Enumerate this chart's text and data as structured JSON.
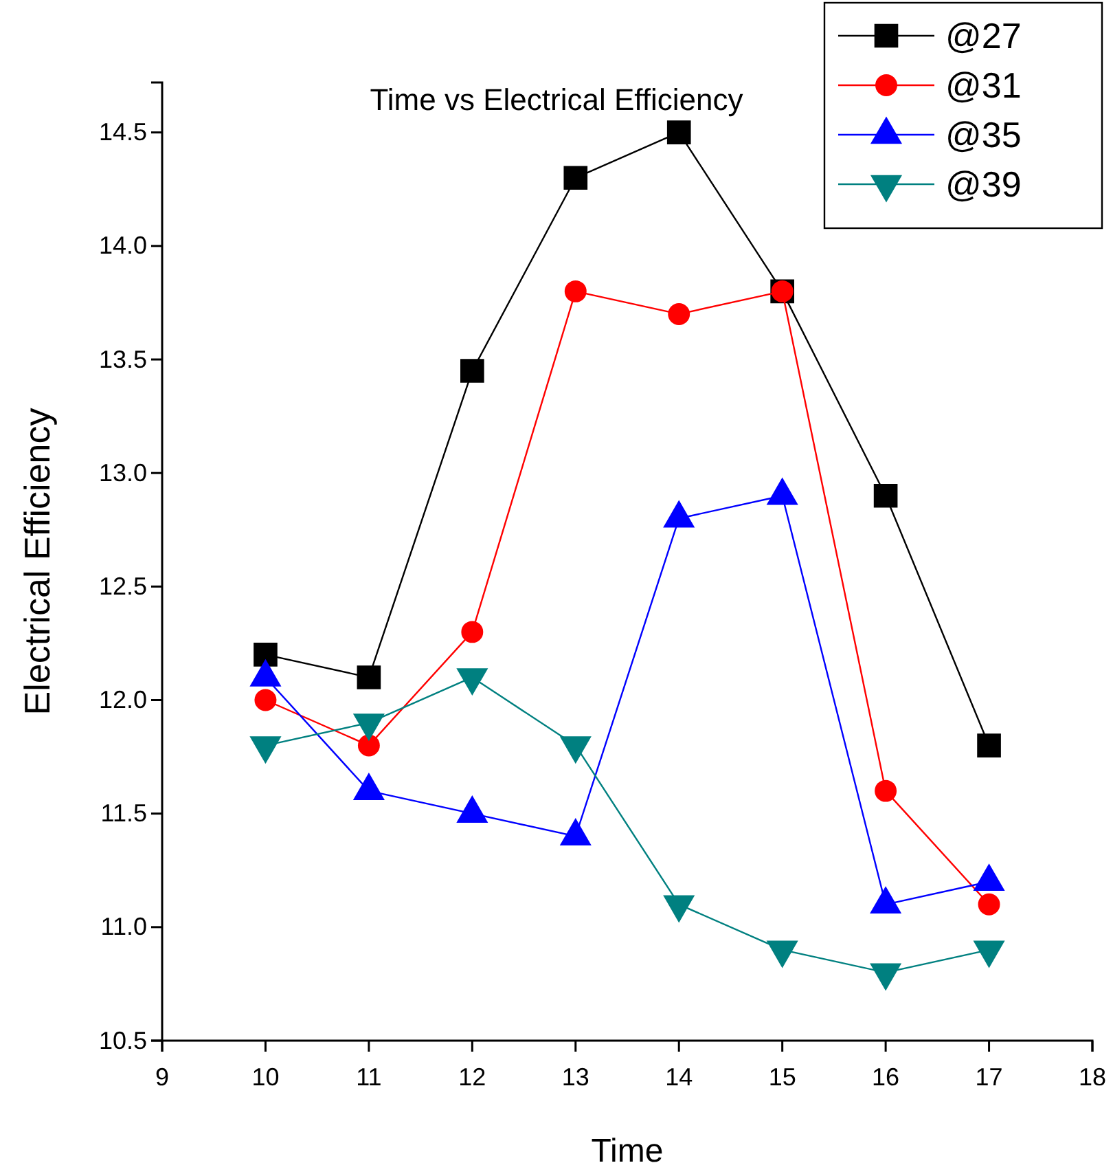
{
  "chart_data": {
    "type": "line",
    "title": "Time vs Electrical Efficiency",
    "xlabel": "Time",
    "ylabel": "Electrical Efficiency",
    "x": [
      10,
      11,
      12,
      13,
      14,
      15,
      16,
      17
    ],
    "xlim": [
      9,
      18
    ],
    "xticks": [
      9,
      10,
      11,
      12,
      13,
      14,
      15,
      16,
      17,
      18
    ],
    "ylim": [
      10.5,
      14.72
    ],
    "yticks": [
      10.5,
      {
        "value": 11,
        "label": "11.0"
      },
      11.5,
      {
        "value": 12,
        "label": "12.0"
      },
      12.5,
      {
        "value": 13,
        "label": "13.0"
      },
      13.5,
      {
        "value": 14,
        "label": "14.0"
      },
      14.5
    ],
    "legend": "top right",
    "line_style": "solid",
    "series": [
      {
        "name": "@27",
        "color": "#000000",
        "marker": "square",
        "values": [
          12.2,
          12.1,
          13.45,
          14.3,
          14.5,
          13.8,
          12.9,
          11.8
        ]
      },
      {
        "name": "@31",
        "color": "#ff0000",
        "marker": "circle",
        "values": [
          12.0,
          11.8,
          12.3,
          13.8,
          13.7,
          13.8,
          11.6,
          11.1
        ]
      },
      {
        "name": "@35",
        "color": "#0000ff",
        "marker": "triangle",
        "values": [
          12.1,
          11.6,
          11.5,
          11.4,
          12.8,
          12.9,
          11.1,
          11.2
        ]
      },
      {
        "name": "@39",
        "color": "#008080",
        "marker": "triangle-down",
        "values": [
          11.8,
          11.9,
          12.1,
          11.8,
          11.1,
          10.9,
          10.8,
          10.9
        ]
      }
    ]
  }
}
